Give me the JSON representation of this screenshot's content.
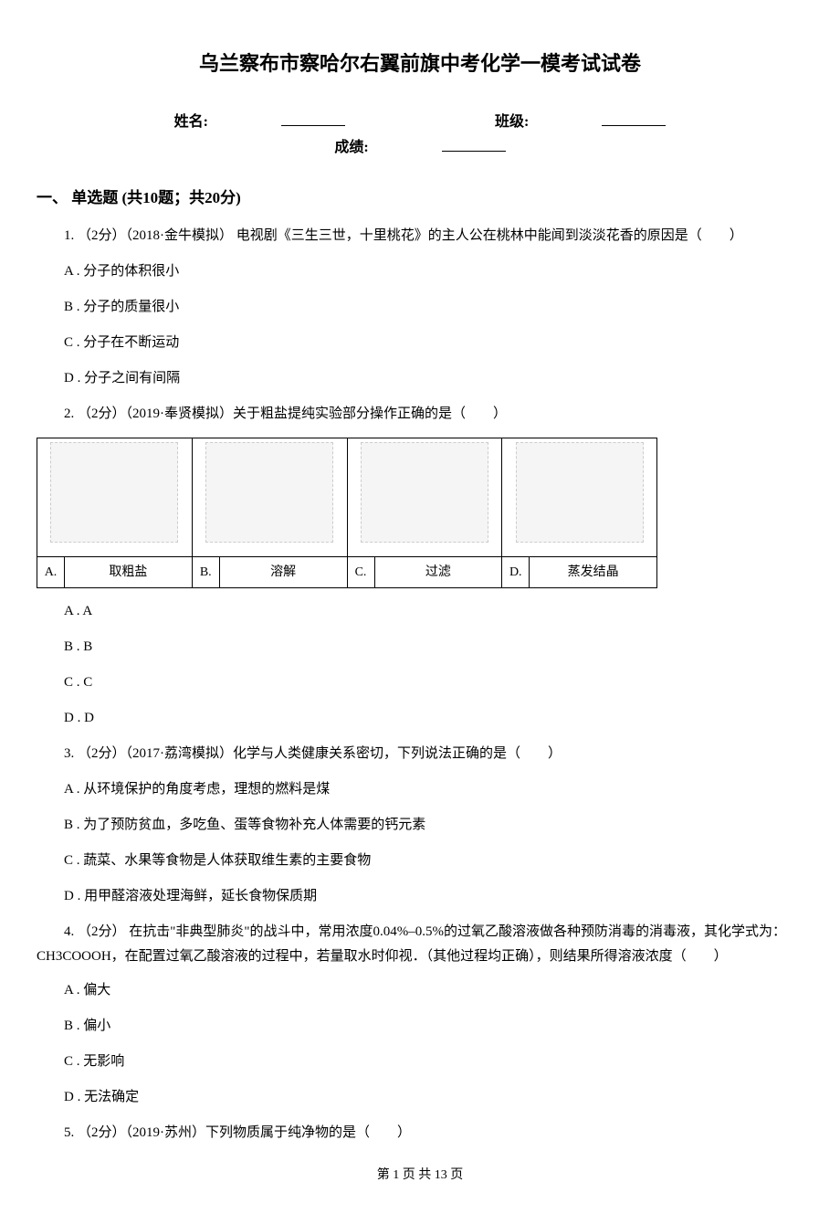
{
  "title": "乌兰察布市察哈尔右翼前旗中考化学一模考试试卷",
  "info": {
    "name_label": "姓名:",
    "class_label": "班级:",
    "score_label": "成绩:"
  },
  "section1": {
    "header": "一、 单选题 (共10题；共20分)"
  },
  "q1": {
    "stem": "1. （2分）（2018·金牛模拟） 电视剧《三生三世，十里桃花》的主人公在桃林中能闻到淡淡花香的原因是（　　）",
    "optA": "A . 分子的体积很小",
    "optB": "B . 分子的质量很小",
    "optC": "C . 分子在不断运动",
    "optD": "D . 分子之间有间隔"
  },
  "q2": {
    "stem": "2. （2分）（2019·奉贤模拟）关于粗盐提纯实验部分操作正确的是（　　）",
    "labelA": "A.",
    "labelB": "B.",
    "labelC": "C.",
    "labelD": "D.",
    "capA": "取粗盐",
    "capB": "溶解",
    "capC": "过滤",
    "capD": "蒸发结晶",
    "optA": "A . A",
    "optB": "B . B",
    "optC": "C . C",
    "optD": "D . D"
  },
  "q3": {
    "stem": "3. （2分）（2017·荔湾模拟）化学与人类健康关系密切，下列说法正确的是（　　）",
    "optA": "A . 从环境保护的角度考虑，理想的燃料是煤",
    "optB": "B . 为了预防贫血，多吃鱼、蛋等食物补充人体需要的钙元素",
    "optC": "C . 蔬菜、水果等食物是人体获取维生素的主要食物",
    "optD": "D . 用甲醛溶液处理海鲜，延长食物保质期"
  },
  "q4": {
    "stem": "4. （2分） 在抗击\"非典型肺炎\"的战斗中，常用浓度0.04%–0.5%的过氧乙酸溶液做各种预防消毒的消毒液，其化学式为：CH3COOOH，在配置过氧乙酸溶液的过程中，若量取水时仰视．（其他过程均正确），则结果所得溶液浓度（　　）",
    "optA": "A . 偏大",
    "optB": "B . 偏小",
    "optC": "C . 无影响",
    "optD": "D . 无法确定"
  },
  "q5": {
    "stem": "5. （2分）（2019·苏州）下列物质属于纯净物的是（　　）"
  },
  "footer": "第 1 页 共 13 页"
}
